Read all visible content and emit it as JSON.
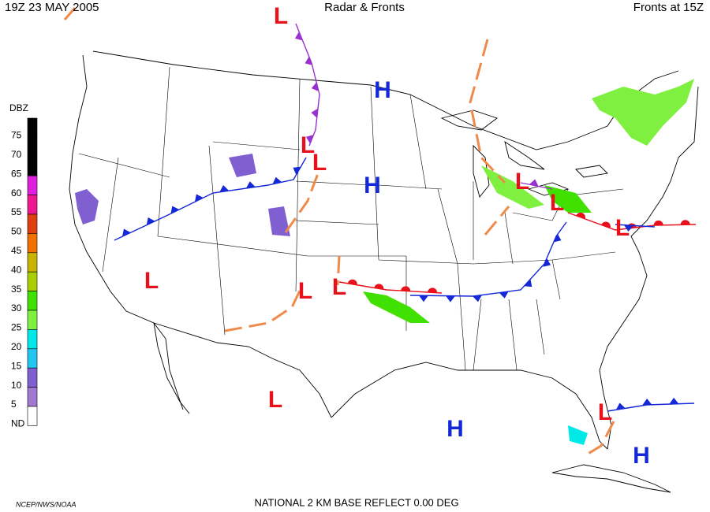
{
  "header": {
    "left": "19Z  23 MAY  2005",
    "center": "Radar & Fronts",
    "right": "Fronts at 15Z"
  },
  "legend": {
    "title": "DBZ",
    "items": [
      {
        "label": "75",
        "color": "#000000"
      },
      {
        "label": "70",
        "color": "#000000"
      },
      {
        "label": "65",
        "color": "#000000"
      },
      {
        "label": "60",
        "color": "#e020e0"
      },
      {
        "label": "55",
        "color": "#f01890"
      },
      {
        "label": "50",
        "color": "#e04010"
      },
      {
        "label": "45",
        "color": "#f07000"
      },
      {
        "label": "40",
        "color": "#c8b400"
      },
      {
        "label": "35",
        "color": "#a8d000"
      },
      {
        "label": "30",
        "color": "#40e000"
      },
      {
        "label": "25",
        "color": "#80f040"
      },
      {
        "label": "20",
        "color": "#00e8e8"
      },
      {
        "label": "15",
        "color": "#20c8f0"
      },
      {
        "label": "10",
        "color": "#8060d0"
      },
      {
        "label": "5",
        "color": "#a078d0"
      },
      {
        "label": "ND",
        "color": "#ffffff"
      }
    ]
  },
  "centers": [
    "L",
    "L",
    "L",
    "H",
    "H",
    "L",
    "L",
    "L",
    "L",
    "L",
    "L",
    "L",
    "H",
    "L",
    "H"
  ],
  "footer": {
    "credit": "NCEP/NWS/NOAA",
    "product": "NATIONAL 2 KM BASE REFLECT 0.00 DEG"
  }
}
